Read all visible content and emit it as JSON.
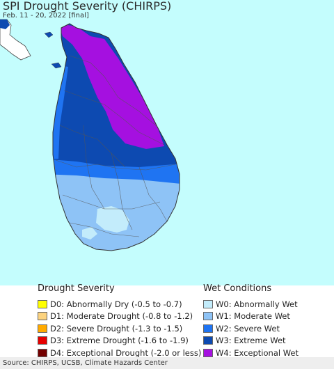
{
  "map": {
    "title": "SPI Drought Severity (CHIRPS)",
    "subtitle": "Feb. 11 - 20, 2022 [final]"
  },
  "colors": {
    "ocean": "#c4fdfd",
    "land_border": "#444444",
    "outside_land": "#ffffff",
    "w0": "#c3ecfb",
    "w1": "#8ec3f6",
    "w2": "#1f74f2",
    "w3": "#0d4ab1",
    "w4": "#a510e0"
  },
  "legend": {
    "drought": {
      "heading": "Drought Severity",
      "items": [
        {
          "label": "D0: Abnormally Dry (-0.5 to -0.7)",
          "color": "#ffff00"
        },
        {
          "label": "D1: Moderate Drought (-0.8 to -1.2)",
          "color": "#fcd37f"
        },
        {
          "label": "D2: Severe Drought (-1.3 to -1.5)",
          "color": "#ffaa00"
        },
        {
          "label": "D3: Extreme Drought (-1.6 to -1.9)",
          "color": "#e60000"
        },
        {
          "label": "D4: Exceptional Drought (-2.0 or less)",
          "color": "#730000"
        }
      ]
    },
    "wet": {
      "heading": "Wet Conditions",
      "items": [
        {
          "label": "W0: Abnormally Wet",
          "color": "#c3ecfb"
        },
        {
          "label": "W1: Moderate Wet",
          "color": "#8ec3f6"
        },
        {
          "label": "W2: Severe Wet",
          "color": "#1f74f2"
        },
        {
          "label": "W3: Extreme Wet",
          "color": "#0d4ab1"
        },
        {
          "label": "W4: Exceptional Wet",
          "color": "#a510e0"
        }
      ]
    }
  },
  "footer": {
    "source": "Source: CHIRPS, UCSB, Climate Hazards Center"
  }
}
